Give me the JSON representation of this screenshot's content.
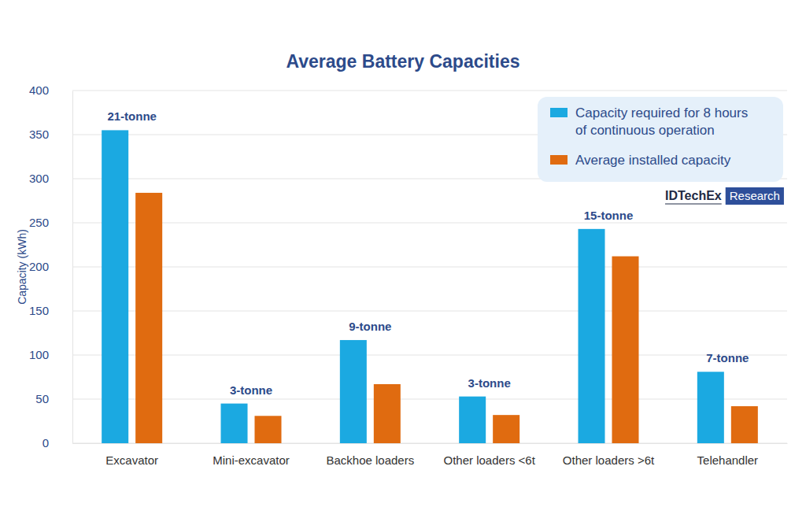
{
  "chart_data": {
    "type": "bar",
    "title": "Average Battery Capacities",
    "y_label": "Capacity (kWh)",
    "categories": [
      "Excavator",
      "Mini-excavator",
      "Backhoe loaders",
      "Other loaders <6t",
      "Other loaders >6t",
      "Telehandler"
    ],
    "annotations": [
      "21-tonne",
      "3-tonne",
      "9-tonne",
      "3-tonne",
      "15-tonne",
      "7-tonne"
    ],
    "series": [
      {
        "name": "Capacity required for 8 hours of continuous operation",
        "color": "#1ba9e1",
        "values": [
          355,
          45,
          117,
          53,
          243,
          81
        ]
      },
      {
        "name": "Average installed capacity",
        "color": "#e06b10",
        "values": [
          284,
          31,
          67,
          32,
          212,
          42
        ]
      }
    ],
    "ylim": [
      0,
      400
    ],
    "yticks": [
      0,
      50,
      100,
      150,
      200,
      250,
      300,
      350,
      400
    ],
    "grid": true,
    "legend": "top-right",
    "source": [
      "IDTechEx",
      "Research"
    ]
  }
}
